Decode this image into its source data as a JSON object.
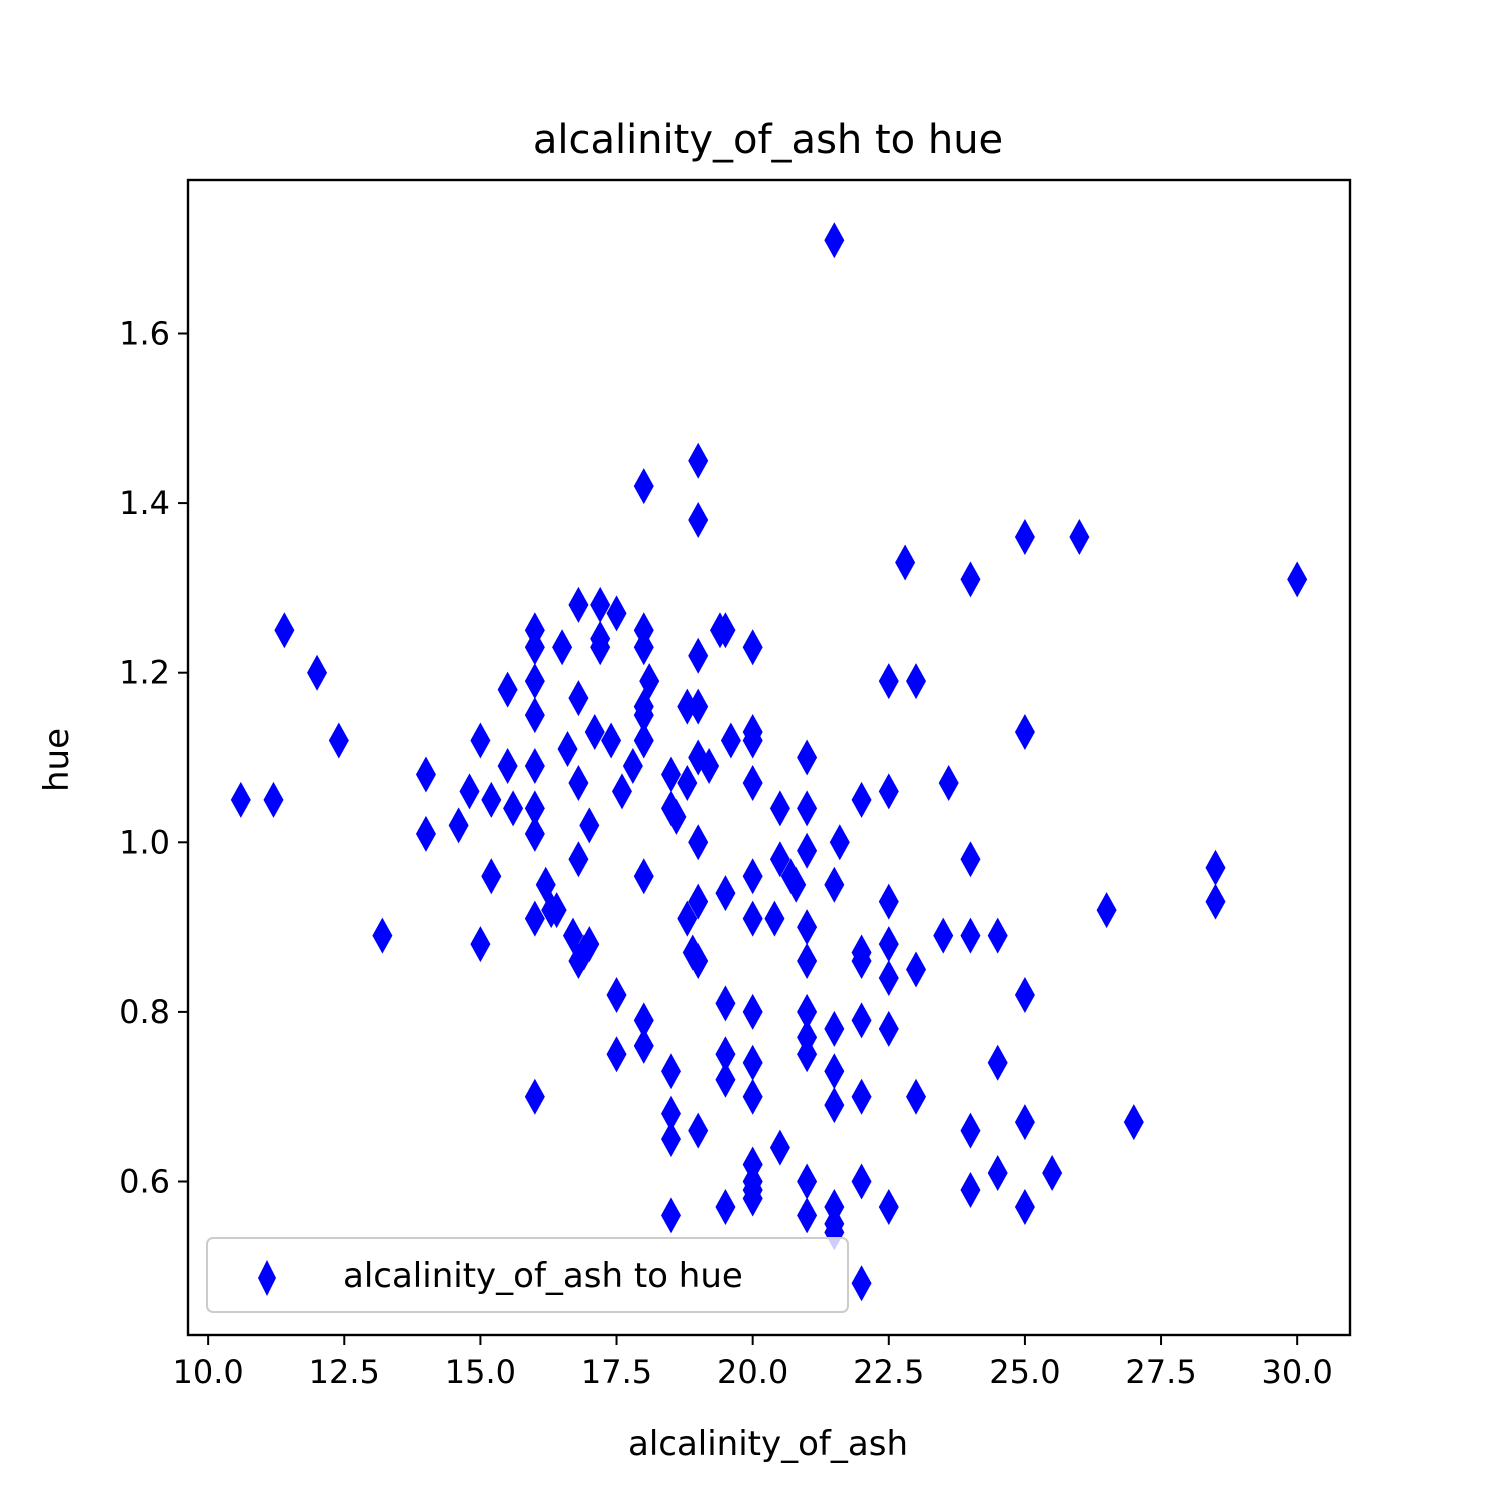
{
  "chart_data": {
    "type": "scatter",
    "title": "alcalinity_of_ash to hue",
    "xlabel": "alcalinity_of_ash",
    "ylabel": "hue",
    "xlim": [
      9.63,
      30.97
    ],
    "ylim": [
      0.419,
      1.781
    ],
    "xticks": [
      "10.0",
      "12.5",
      "15.0",
      "17.5",
      "20.0",
      "22.5",
      "25.0",
      "27.5",
      "30.0"
    ],
    "yticks": [
      "0.6",
      "0.8",
      "1.0",
      "1.2",
      "1.4",
      "1.6"
    ],
    "grid": false,
    "legend": "lower-left",
    "marker": "thin-diamond",
    "color": "#0000ff",
    "series": [
      {
        "name": "alcalinity_of_ash to hue",
        "points": [
          [
            10.6,
            1.05
          ],
          [
            11.2,
            1.05
          ],
          [
            11.4,
            1.25
          ],
          [
            12.0,
            1.2
          ],
          [
            12.4,
            1.12
          ],
          [
            13.2,
            0.89
          ],
          [
            14.0,
            1.08
          ],
          [
            14.0,
            1.01
          ],
          [
            14.6,
            1.02
          ],
          [
            14.8,
            1.06
          ],
          [
            15.0,
            1.12
          ],
          [
            15.0,
            0.88
          ],
          [
            15.2,
            1.05
          ],
          [
            15.2,
            0.96
          ],
          [
            15.5,
            1.18
          ],
          [
            15.5,
            1.09
          ],
          [
            15.6,
            1.04
          ],
          [
            16.0,
            1.25
          ],
          [
            16.0,
            1.23
          ],
          [
            16.0,
            1.19
          ],
          [
            16.0,
            1.15
          ],
          [
            16.0,
            1.09
          ],
          [
            16.0,
            1.04
          ],
          [
            16.0,
            1.01
          ],
          [
            16.0,
            0.91
          ],
          [
            16.0,
            0.7
          ],
          [
            16.2,
            0.95
          ],
          [
            16.3,
            0.92
          ],
          [
            16.4,
            0.92
          ],
          [
            16.5,
            1.23
          ],
          [
            16.6,
            1.11
          ],
          [
            16.7,
            0.89
          ],
          [
            16.8,
            1.28
          ],
          [
            16.8,
            1.17
          ],
          [
            16.8,
            1.07
          ],
          [
            16.8,
            0.98
          ],
          [
            16.8,
            0.86
          ],
          [
            16.9,
            0.87
          ],
          [
            17.0,
            1.02
          ],
          [
            17.0,
            0.88
          ],
          [
            17.1,
            1.13
          ],
          [
            17.2,
            1.28
          ],
          [
            17.2,
            1.24
          ],
          [
            17.2,
            1.23
          ],
          [
            17.4,
            1.12
          ],
          [
            17.5,
            1.27
          ],
          [
            17.5,
            0.82
          ],
          [
            17.5,
            0.75
          ],
          [
            17.6,
            1.06
          ],
          [
            17.8,
            1.09
          ],
          [
            18.0,
            1.42
          ],
          [
            18.0,
            1.25
          ],
          [
            18.0,
            1.23
          ],
          [
            18.0,
            1.16
          ],
          [
            18.0,
            1.15
          ],
          [
            18.0,
            1.12
          ],
          [
            18.0,
            0.96
          ],
          [
            18.0,
            0.79
          ],
          [
            18.0,
            0.76
          ],
          [
            18.1,
            1.19
          ],
          [
            18.5,
            1.08
          ],
          [
            18.5,
            1.04
          ],
          [
            18.5,
            0.73
          ],
          [
            18.5,
            0.68
          ],
          [
            18.5,
            0.65
          ],
          [
            18.5,
            0.56
          ],
          [
            18.6,
            1.03
          ],
          [
            18.8,
            1.16
          ],
          [
            18.8,
            1.07
          ],
          [
            18.8,
            0.91
          ],
          [
            18.9,
            0.87
          ],
          [
            19.0,
            1.45
          ],
          [
            19.0,
            1.38
          ],
          [
            19.0,
            1.22
          ],
          [
            19.0,
            1.16
          ],
          [
            19.0,
            1.1
          ],
          [
            19.0,
            1.0
          ],
          [
            19.0,
            0.93
          ],
          [
            19.0,
            0.86
          ],
          [
            19.0,
            0.66
          ],
          [
            19.2,
            1.09
          ],
          [
            19.4,
            1.25
          ],
          [
            19.5,
            1.25
          ],
          [
            19.5,
            0.94
          ],
          [
            19.5,
            0.81
          ],
          [
            19.5,
            0.75
          ],
          [
            19.5,
            0.72
          ],
          [
            19.5,
            0.57
          ],
          [
            19.6,
            1.12
          ],
          [
            20.0,
            1.23
          ],
          [
            20.0,
            1.13
          ],
          [
            20.0,
            1.12
          ],
          [
            20.0,
            1.07
          ],
          [
            20.0,
            0.96
          ],
          [
            20.0,
            0.91
          ],
          [
            20.0,
            0.8
          ],
          [
            20.0,
            0.74
          ],
          [
            20.0,
            0.7
          ],
          [
            20.0,
            0.62
          ],
          [
            20.0,
            0.6
          ],
          [
            20.0,
            0.59
          ],
          [
            20.0,
            0.58
          ],
          [
            20.4,
            0.91
          ],
          [
            20.5,
            1.04
          ],
          [
            20.5,
            0.98
          ],
          [
            20.5,
            0.64
          ],
          [
            20.7,
            0.96
          ],
          [
            20.8,
            0.95
          ],
          [
            21.0,
            1.1
          ],
          [
            21.0,
            1.04
          ],
          [
            21.0,
            0.99
          ],
          [
            21.0,
            0.9
          ],
          [
            21.0,
            0.86
          ],
          [
            21.0,
            0.8
          ],
          [
            21.0,
            0.77
          ],
          [
            21.0,
            0.75
          ],
          [
            21.0,
            0.6
          ],
          [
            21.0,
            0.56
          ],
          [
            21.5,
            1.71
          ],
          [
            21.5,
            0.95
          ],
          [
            21.5,
            0.78
          ],
          [
            21.5,
            0.73
          ],
          [
            21.5,
            0.69
          ],
          [
            21.5,
            0.57
          ],
          [
            21.5,
            0.55
          ],
          [
            21.5,
            0.54
          ],
          [
            21.6,
            1.0
          ],
          [
            22.0,
            1.05
          ],
          [
            22.0,
            0.87
          ],
          [
            22.0,
            0.86
          ],
          [
            22.0,
            0.79
          ],
          [
            22.0,
            0.7
          ],
          [
            22.0,
            0.6
          ],
          [
            22.0,
            0.48
          ],
          [
            22.5,
            1.19
          ],
          [
            22.5,
            1.06
          ],
          [
            22.5,
            0.93
          ],
          [
            22.5,
            0.88
          ],
          [
            22.5,
            0.84
          ],
          [
            22.5,
            0.78
          ],
          [
            22.5,
            0.57
          ],
          [
            22.8,
            1.33
          ],
          [
            23.0,
            1.19
          ],
          [
            23.0,
            0.85
          ],
          [
            23.0,
            0.7
          ],
          [
            23.5,
            0.89
          ],
          [
            23.6,
            1.07
          ],
          [
            24.0,
            1.31
          ],
          [
            24.0,
            0.98
          ],
          [
            24.0,
            0.89
          ],
          [
            24.0,
            0.66
          ],
          [
            24.0,
            0.59
          ],
          [
            24.5,
            0.89
          ],
          [
            24.5,
            0.74
          ],
          [
            24.5,
            0.61
          ],
          [
            25.0,
            1.36
          ],
          [
            25.0,
            1.13
          ],
          [
            25.0,
            0.82
          ],
          [
            25.0,
            0.67
          ],
          [
            25.0,
            0.57
          ],
          [
            25.5,
            0.61
          ],
          [
            26.0,
            1.36
          ],
          [
            26.5,
            0.92
          ],
          [
            27.0,
            0.67
          ],
          [
            28.5,
            0.97
          ],
          [
            28.5,
            0.93
          ],
          [
            30.0,
            1.31
          ]
        ]
      }
    ]
  }
}
